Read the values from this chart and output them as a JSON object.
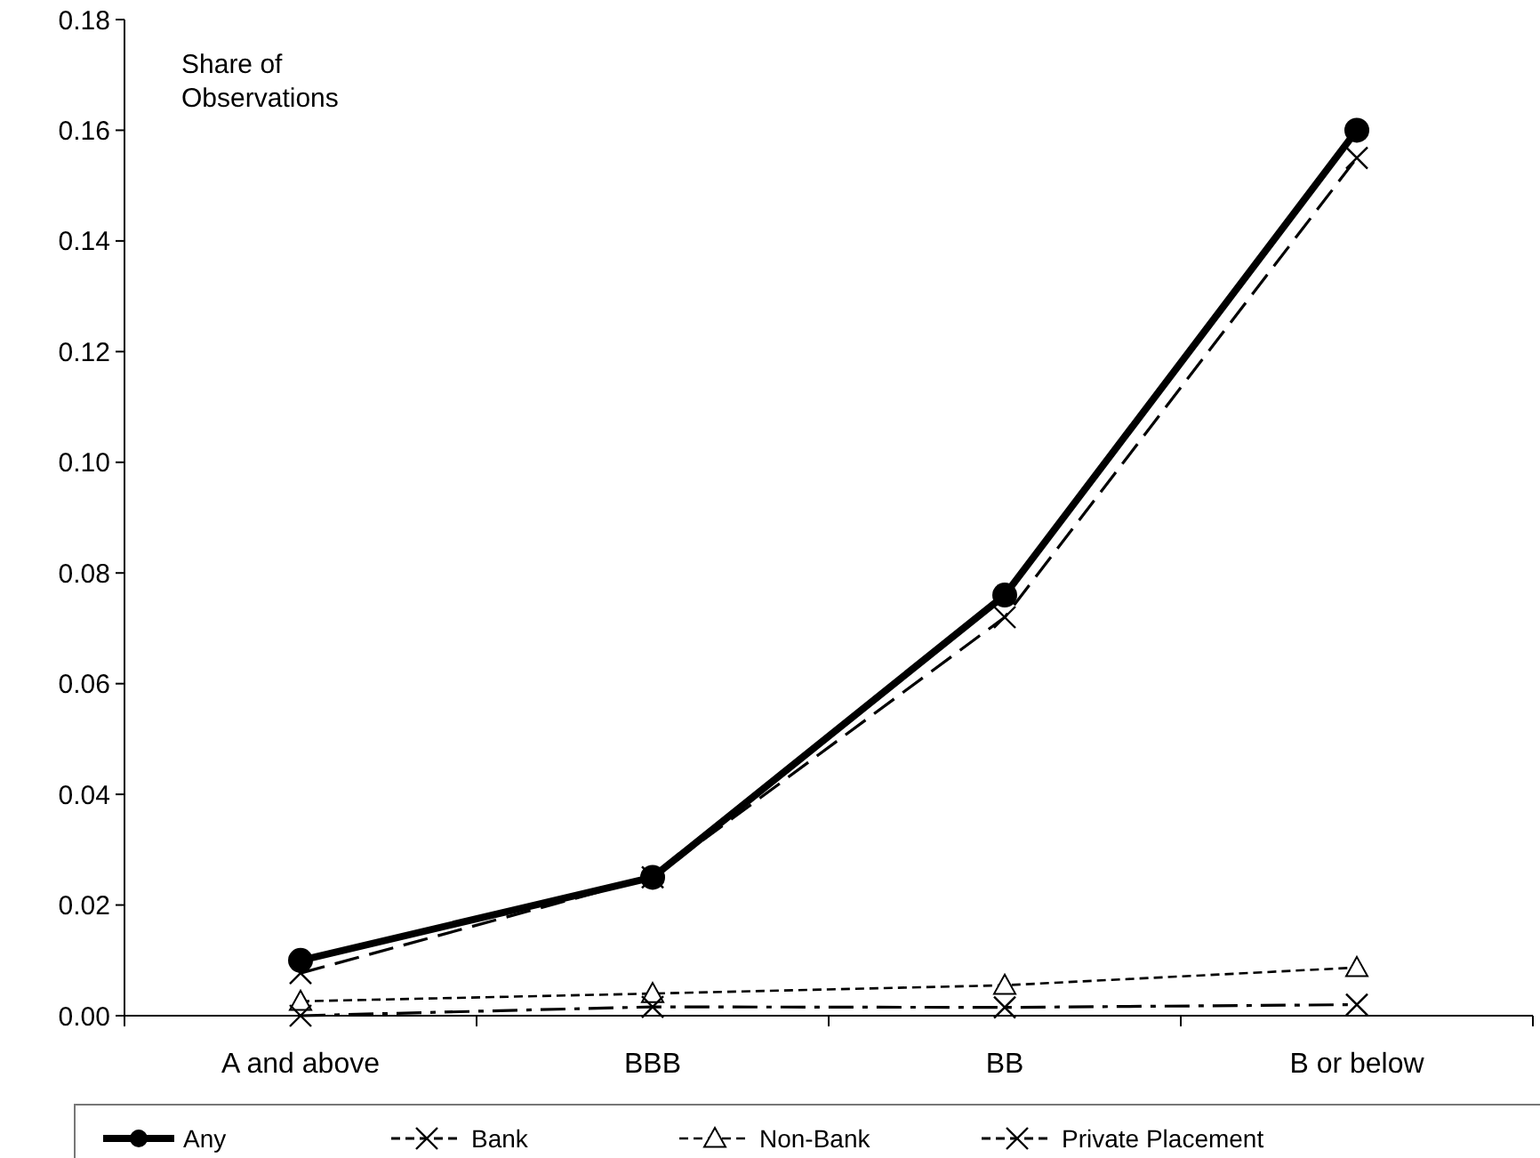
{
  "chart_data": {
    "type": "line",
    "ylabel": "Share of Observations",
    "categories": [
      "A and above",
      "BBB",
      "BB",
      "B or below"
    ],
    "ylim": [
      0,
      0.18
    ],
    "yticks": [
      {
        "value": 0,
        "label": "0.00"
      },
      {
        "value": 0.02,
        "label": "0.02"
      },
      {
        "value": 0.04,
        "label": "0.04"
      },
      {
        "value": 0.06,
        "label": "0.06"
      },
      {
        "value": 0.08,
        "label": "0.08"
      },
      {
        "value": 0.1,
        "label": "0.10"
      },
      {
        "value": 0.12,
        "label": "0.12"
      },
      {
        "value": 0.14,
        "label": "0.14"
      },
      {
        "value": 0.16,
        "label": "0.16"
      },
      {
        "value": 0.18,
        "label": "0.18"
      }
    ],
    "grid": false,
    "legend": "bottom",
    "series": [
      {
        "name": "Any",
        "color": "#000000",
        "marker": "circle",
        "line_style": "solid",
        "values": [
          0.01,
          0.025,
          0.076,
          0.16
        ]
      },
      {
        "name": "Bank",
        "color": "#000000",
        "marker": "cross",
        "line_style": "dashed",
        "values": [
          0.0077,
          0.025,
          0.072,
          0.155
        ]
      },
      {
        "name": "Non-Bank",
        "color": "#000000",
        "marker": "triangle",
        "line_style": "dotted",
        "values": [
          0.0026,
          0.004,
          0.0055,
          0.0087
        ]
      },
      {
        "name": "Private Placement",
        "color": "#000000",
        "marker": "cross",
        "line_style": "dashdot",
        "values": [
          0.0,
          0.0016,
          0.0015,
          0.002
        ]
      }
    ]
  }
}
